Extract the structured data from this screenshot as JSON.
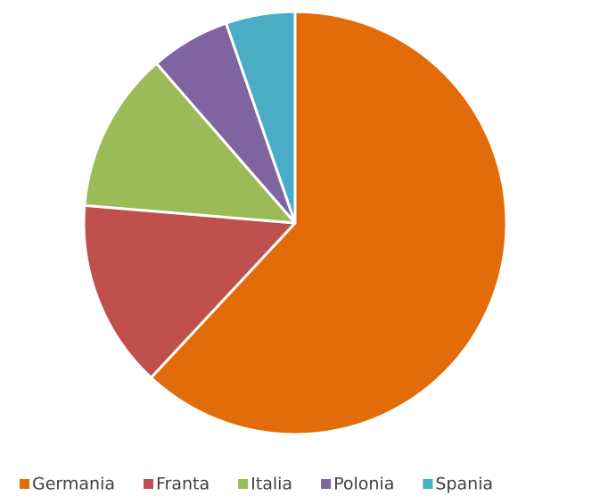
{
  "chart_data": {
    "type": "pie",
    "categories": [
      "Germania",
      "Franta",
      "Italia",
      "Polonia",
      "Spania"
    ],
    "values": [
      62,
      14.4,
      12.3,
      6.1,
      5.3
    ],
    "colors": [
      "#e36c0a",
      "#c0504d",
      "#9bbb59",
      "#8064a2",
      "#4bacc6"
    ],
    "legend": "bottom"
  }
}
